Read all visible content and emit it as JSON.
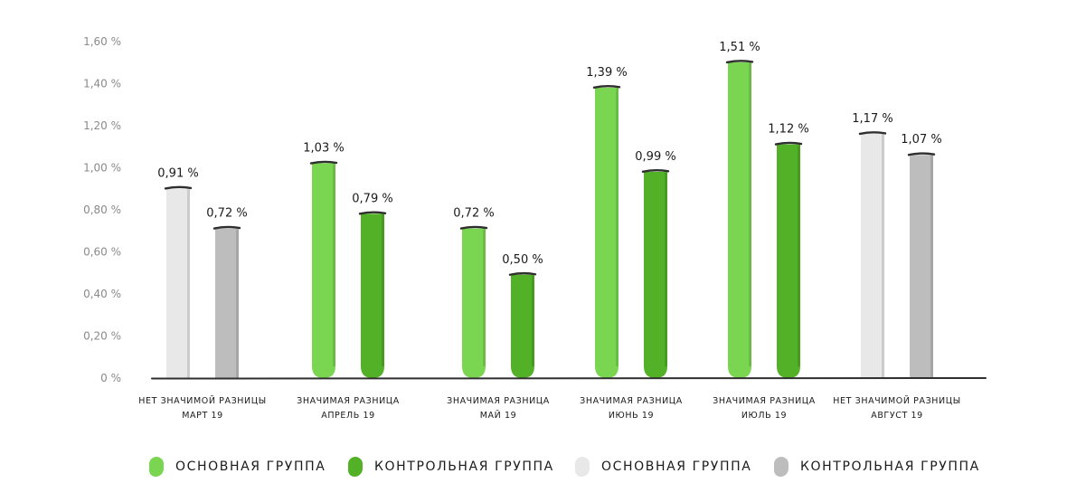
{
  "chart_data": {
    "type": "bar",
    "title": "",
    "xlabel": "",
    "ylabel": "",
    "ylim": [
      0,
      1.6
    ],
    "yticks": [
      "0 %",
      "0,20 %",
      "0,40 %",
      "0,60 %",
      "0,80 %",
      "1,00 %",
      "1,20 %",
      "1,40 %",
      "1,60 %"
    ],
    "groups": [
      {
        "label_top": "НЕТ ЗНАЧИМОЙ РАЗНИЦЫ",
        "label_bottom": "МАРТ 19",
        "bars": [
          {
            "series": "Основная группа (нет значимой разницы)",
            "value": 0.91,
            "label": "0,91 %",
            "color": "#e8e8e8"
          },
          {
            "series": "Контрольная группа (нет значимой разницы)",
            "value": 0.72,
            "label": "0,72 %",
            "color": "#bdbdbd"
          }
        ]
      },
      {
        "label_top": "ЗНАЧИМАЯ РАЗНИЦА",
        "label_bottom": "АПРЕЛЬ 19",
        "bars": [
          {
            "series": "Основная группа",
            "value": 1.03,
            "label": "1,03 %",
            "color": "#7ad651"
          },
          {
            "series": "Контрольная группа",
            "value": 0.79,
            "label": "0,79 %",
            "color": "#52b126"
          }
        ]
      },
      {
        "label_top": "ЗНАЧИМАЯ РАЗНИЦА",
        "label_bottom": "МАЙ 19",
        "bars": [
          {
            "series": "Основная группа",
            "value": 0.72,
            "label": "0,72 %",
            "color": "#7ad651"
          },
          {
            "series": "Контрольная группа",
            "value": 0.5,
            "label": "0,50 %",
            "color": "#52b126"
          }
        ]
      },
      {
        "label_top": "ЗНАЧИМАЯ РАЗНИЦА",
        "label_bottom": "ИЮНЬ 19",
        "bars": [
          {
            "series": "Основная группа",
            "value": 1.39,
            "label": "1,39 %",
            "color": "#7ad651"
          },
          {
            "series": "Контрольная группа",
            "value": 0.99,
            "label": "0,99 %",
            "color": "#52b126"
          }
        ]
      },
      {
        "label_top": "ЗНАЧИМАЯ РАЗНИЦА",
        "label_bottom": "ИЮЛЬ 19",
        "bars": [
          {
            "series": "Основная группа",
            "value": 1.51,
            "label": "1,51 %",
            "color": "#7ad651"
          },
          {
            "series": "Контрольная группа",
            "value": 1.12,
            "label": "1,12 %",
            "color": "#52b126"
          }
        ]
      },
      {
        "label_top": "НЕТ ЗНАЧИМОЙ РАЗНИЦЫ",
        "label_bottom": "АВГУСТ 19",
        "bars": [
          {
            "series": "Основная группа (нет значимой разницы)",
            "value": 1.17,
            "label": "1,17 %",
            "color": "#e8e8e8"
          },
          {
            "series": "Контрольная группа (нет значимой разницы)",
            "value": 1.07,
            "label": "1,07 %",
            "color": "#bdbdbd"
          }
        ]
      }
    ],
    "legend": [
      {
        "label": "ОСНОВНАЯ ГРУППА",
        "color": "#7ad651"
      },
      {
        "label": "КОНТРОЛЬНАЯ ГРУППА",
        "color": "#52b126"
      },
      {
        "label": "ОСНОВНАЯ ГРУППА",
        "color": "#e8e8e8"
      },
      {
        "label": "КОНТРОЛЬНАЯ ГРУППА",
        "color": "#bdbdbd"
      }
    ],
    "legend_position": "bottom"
  }
}
